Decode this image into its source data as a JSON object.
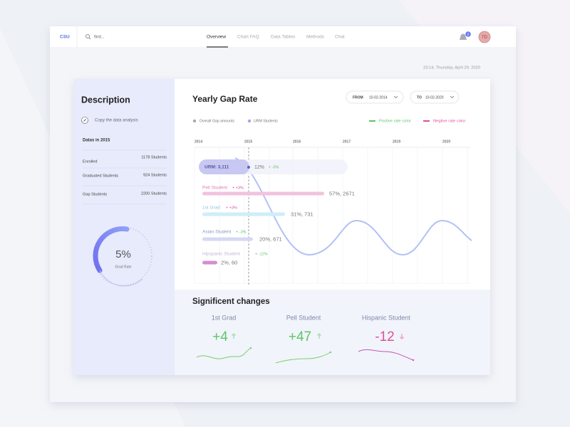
{
  "nav": {
    "brand": "CSU",
    "search_placeholder": "find...",
    "tabs": [
      "Overview",
      "Chart FAQ",
      "Data Tables",
      "Methods",
      "Chat"
    ],
    "notifications": "2",
    "avatar": "TD"
  },
  "timestamp": "23:14, Thursday, April 29, 2020",
  "description": {
    "title": "Description",
    "action": "Copy the data analysis",
    "section": "Datas in 2015",
    "rows": [
      {
        "label": "Enrolled",
        "value": "1178 Students"
      },
      {
        "label": "Graduated Students",
        "value": "924 Students"
      },
      {
        "label": "Gap Students",
        "value": "2200 Students"
      }
    ],
    "gauge": {
      "value": "5%",
      "label": "Grad Rate"
    }
  },
  "gap_chart": {
    "title": "Yearly Gap Rate",
    "from_label": "FROM",
    "from": "10-02-2014",
    "to_label": "TO",
    "to": "10-02-2020",
    "legend": [
      "Overall Gap amounts",
      "URM Students"
    ],
    "rate_legend": [
      "Postive rate color",
      "Negtive rate color"
    ],
    "years": [
      "2014",
      "2015",
      "2016",
      "2017",
      "2019",
      "2020"
    ],
    "urm": {
      "label": "URM: 3,111",
      "value": "12%",
      "change": "+ -5%"
    },
    "groups": [
      {
        "name": "Pell Student",
        "change": "+ +3%",
        "value": "57%, 2671"
      },
      {
        "name": "1st Grad",
        "change": "+ +3%",
        "value": "31%, 731"
      },
      {
        "name": "Asian Student",
        "change": "+ -3%",
        "value": "20%, 671"
      },
      {
        "name": "Hipspanic Student",
        "change": "+ -12%",
        "value": "2%, 60"
      }
    ]
  },
  "significant_changes": {
    "title": "Significent changes",
    "items": [
      {
        "name": "1st Grad",
        "change": "+4"
      },
      {
        "name": "Pell Student",
        "change": "+47"
      },
      {
        "name": "Hispanic Student",
        "change": "-12"
      }
    ]
  }
}
